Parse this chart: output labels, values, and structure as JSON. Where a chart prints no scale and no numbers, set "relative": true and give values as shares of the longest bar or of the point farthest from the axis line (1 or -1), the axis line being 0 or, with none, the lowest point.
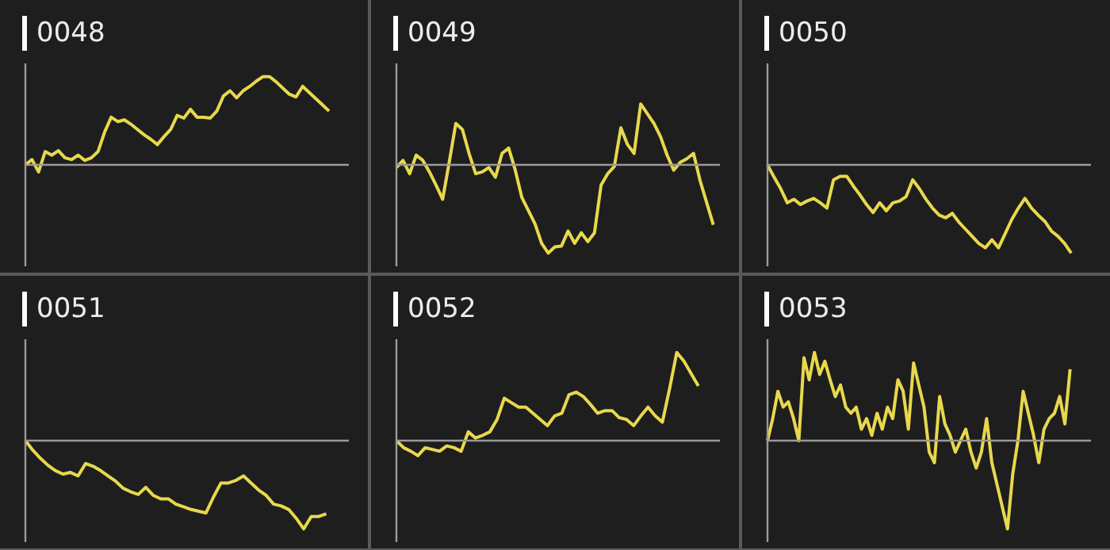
{
  "chart_data": [
    {
      "type": "line",
      "title": "0048",
      "relative": true,
      "marker": "none",
      "color": "#e8d84c",
      "categories": [
        null,
        null,
        null,
        null,
        null,
        null,
        null,
        null,
        null,
        null,
        null,
        null,
        null,
        null,
        null,
        null,
        null,
        null,
        null,
        null,
        null,
        null,
        null,
        null,
        null,
        null,
        null,
        null,
        null,
        null,
        null,
        null,
        null,
        null,
        null,
        null,
        null,
        null,
        null,
        null,
        null,
        null,
        null,
        null,
        null,
        null,
        null,
        null,
        null,
        null
      ],
      "values": [
        0,
        0.06,
        -0.08,
        0.15,
        0.11,
        0.16,
        0.08,
        0.06,
        0.11,
        0.05,
        0.08,
        0.15,
        0.37,
        0.54,
        0.49,
        0.51,
        0.46,
        0.4,
        0.34,
        0.29,
        0.23,
        0.32,
        0.4,
        0.56,
        0.53,
        0.63,
        0.54,
        0.54,
        0.53,
        0.61,
        0.78,
        0.84,
        0.76,
        0.84,
        0.89,
        0.95,
        1,
        1,
        0.94,
        0.87,
        0.8,
        0.77,
        0.89,
        0.82,
        0.75,
        0.68,
        0.61,
        null,
        null,
        null
      ]
    },
    {
      "type": "line",
      "title": "0049",
      "relative": true,
      "marker": "none",
      "color": "#e8d84c",
      "categories": [
        null,
        null,
        null,
        null,
        null,
        null,
        null,
        null,
        null,
        null,
        null,
        null,
        null,
        null,
        null,
        null,
        null,
        null,
        null,
        null,
        null,
        null,
        null,
        null,
        null,
        null,
        null,
        null,
        null,
        null,
        null,
        null,
        null,
        null,
        null,
        null,
        null,
        null,
        null,
        null,
        null,
        null,
        null,
        null,
        null,
        null,
        null,
        null,
        null,
        null
      ],
      "values": [
        -0.03,
        0.05,
        -0.1,
        0.11,
        0.05,
        -0.08,
        -0.23,
        -0.39,
        0.03,
        0.47,
        0.4,
        0.13,
        -0.1,
        -0.08,
        -0.03,
        -0.14,
        0.13,
        0.19,
        -0.06,
        -0.37,
        -0.52,
        -0.67,
        -0.89,
        -1,
        -0.93,
        -0.92,
        -0.75,
        -0.89,
        -0.77,
        -0.87,
        -0.77,
        -0.23,
        -0.1,
        -0.02,
        0.42,
        0.23,
        0.13,
        0.69,
        0.58,
        0.47,
        0.32,
        0.11,
        -0.06,
        0.03,
        0.07,
        0.13,
        -0.18,
        -0.43,
        -0.68,
        null
      ]
    },
    {
      "type": "line",
      "title": "0050",
      "relative": true,
      "marker": "none",
      "color": "#e8d84c",
      "categories": [
        null,
        null,
        null,
        null,
        null,
        null,
        null,
        null,
        null,
        null,
        null,
        null,
        null,
        null,
        null,
        null,
        null,
        null,
        null,
        null,
        null,
        null,
        null,
        null,
        null,
        null,
        null,
        null,
        null,
        null,
        null,
        null,
        null,
        null,
        null,
        null,
        null,
        null,
        null,
        null,
        null,
        null,
        null,
        null,
        null,
        null,
        null,
        null,
        null,
        null
      ],
      "values": [
        0,
        -0.14,
        -0.27,
        -0.43,
        -0.39,
        -0.45,
        -0.41,
        -0.38,
        -0.43,
        -0.49,
        -0.17,
        -0.13,
        -0.13,
        -0.24,
        -0.34,
        -0.45,
        -0.54,
        -0.43,
        -0.52,
        -0.43,
        -0.41,
        -0.36,
        -0.17,
        -0.27,
        -0.39,
        -0.49,
        -0.57,
        -0.6,
        -0.55,
        -0.65,
        -0.73,
        -0.81,
        -0.89,
        -0.94,
        -0.85,
        -0.94,
        -0.78,
        -0.62,
        -0.49,
        -0.38,
        -0.49,
        -0.57,
        -0.64,
        -0.75,
        -0.81,
        -0.89,
        -1,
        null,
        null,
        null
      ]
    },
    {
      "type": "line",
      "title": "0051",
      "relative": true,
      "marker": "none",
      "color": "#e8d84c",
      "categories": [
        null,
        null,
        null,
        null,
        null,
        null,
        null,
        null,
        null,
        null,
        null,
        null,
        null,
        null,
        null,
        null,
        null,
        null,
        null,
        null,
        null,
        null,
        null,
        null,
        null,
        null,
        null,
        null,
        null,
        null,
        null,
        null,
        null,
        null,
        null,
        null,
        null,
        null,
        null,
        null,
        null,
        null,
        null,
        null
      ],
      "values": [
        0,
        -0.11,
        -0.2,
        -0.28,
        -0.34,
        -0.38,
        -0.36,
        -0.4,
        -0.26,
        -0.29,
        -0.34,
        -0.4,
        -0.46,
        -0.54,
        -0.58,
        -0.61,
        -0.53,
        -0.62,
        -0.66,
        -0.66,
        -0.72,
        -0.75,
        -0.78,
        -0.8,
        -0.82,
        -0.64,
        -0.48,
        -0.48,
        -0.45,
        -0.4,
        -0.48,
        -0.56,
        -0.62,
        -0.72,
        -0.74,
        -0.78,
        -0.88,
        -1,
        -0.86,
        -0.86,
        -0.83,
        null,
        null,
        null
      ]
    },
    {
      "type": "line",
      "title": "0052",
      "relative": true,
      "marker": "none",
      "color": "#e8d84c",
      "categories": [
        null,
        null,
        null,
        null,
        null,
        null,
        null,
        null,
        null,
        null,
        null,
        null,
        null,
        null,
        null,
        null,
        null,
        null,
        null,
        null,
        null,
        null,
        null,
        null,
        null,
        null,
        null,
        null,
        null,
        null,
        null,
        null,
        null,
        null,
        null,
        null,
        null,
        null,
        null,
        null,
        null,
        null,
        null,
        null,
        null,
        null
      ],
      "values": [
        0,
        -0.08,
        -0.12,
        -0.17,
        -0.08,
        -0.1,
        -0.12,
        -0.06,
        -0.08,
        -0.12,
        0.1,
        0.03,
        0.06,
        0.1,
        0.24,
        0.48,
        0.43,
        0.38,
        0.38,
        0.31,
        0.24,
        0.17,
        0.28,
        0.31,
        0.52,
        0.55,
        0.5,
        0.41,
        0.31,
        0.34,
        0.34,
        0.26,
        0.24,
        0.17,
        0.28,
        0.38,
        0.28,
        0.21,
        0.59,
        1,
        0.9,
        0.76,
        0.62,
        null,
        null,
        null
      ]
    },
    {
      "type": "line",
      "title": "0053",
      "relative": true,
      "marker": "none",
      "color": "#e8d84c",
      "categories": [
        null,
        null,
        null,
        null,
        null,
        null,
        null,
        null,
        null,
        null,
        null,
        null,
        null,
        null,
        null,
        null,
        null,
        null,
        null,
        null,
        null,
        null,
        null,
        null,
        null,
        null,
        null,
        null,
        null,
        null,
        null,
        null,
        null,
        null,
        null,
        null,
        null,
        null,
        null,
        null,
        null,
        null,
        null,
        null,
        null,
        null,
        null,
        null,
        null,
        null,
        null,
        null,
        null,
        null,
        null,
        null,
        null,
        null,
        null,
        null,
        null,
        null,
        null
      ],
      "values": [
        0,
        0.25,
        0.56,
        0.38,
        0.44,
        0.25,
        0,
        0.94,
        0.69,
        1,
        0.75,
        0.9,
        0.69,
        0.5,
        0.63,
        0.38,
        0.31,
        0.38,
        0.13,
        0.25,
        0.06,
        0.31,
        0.13,
        0.38,
        0.25,
        0.69,
        0.56,
        0.13,
        0.88,
        0.63,
        0.38,
        -0.13,
        -0.25,
        0.5,
        0.19,
        0.06,
        -0.13,
        0,
        0.13,
        -0.13,
        -0.31,
        -0.13,
        0.25,
        -0.25,
        -0.5,
        -0.75,
        -1,
        -0.38,
        0,
        0.56,
        0.31,
        0.06,
        -0.25,
        0.13,
        0.25,
        0.31,
        0.5,
        0.19,
        0.81,
        null,
        null,
        null,
        null
      ]
    }
  ]
}
